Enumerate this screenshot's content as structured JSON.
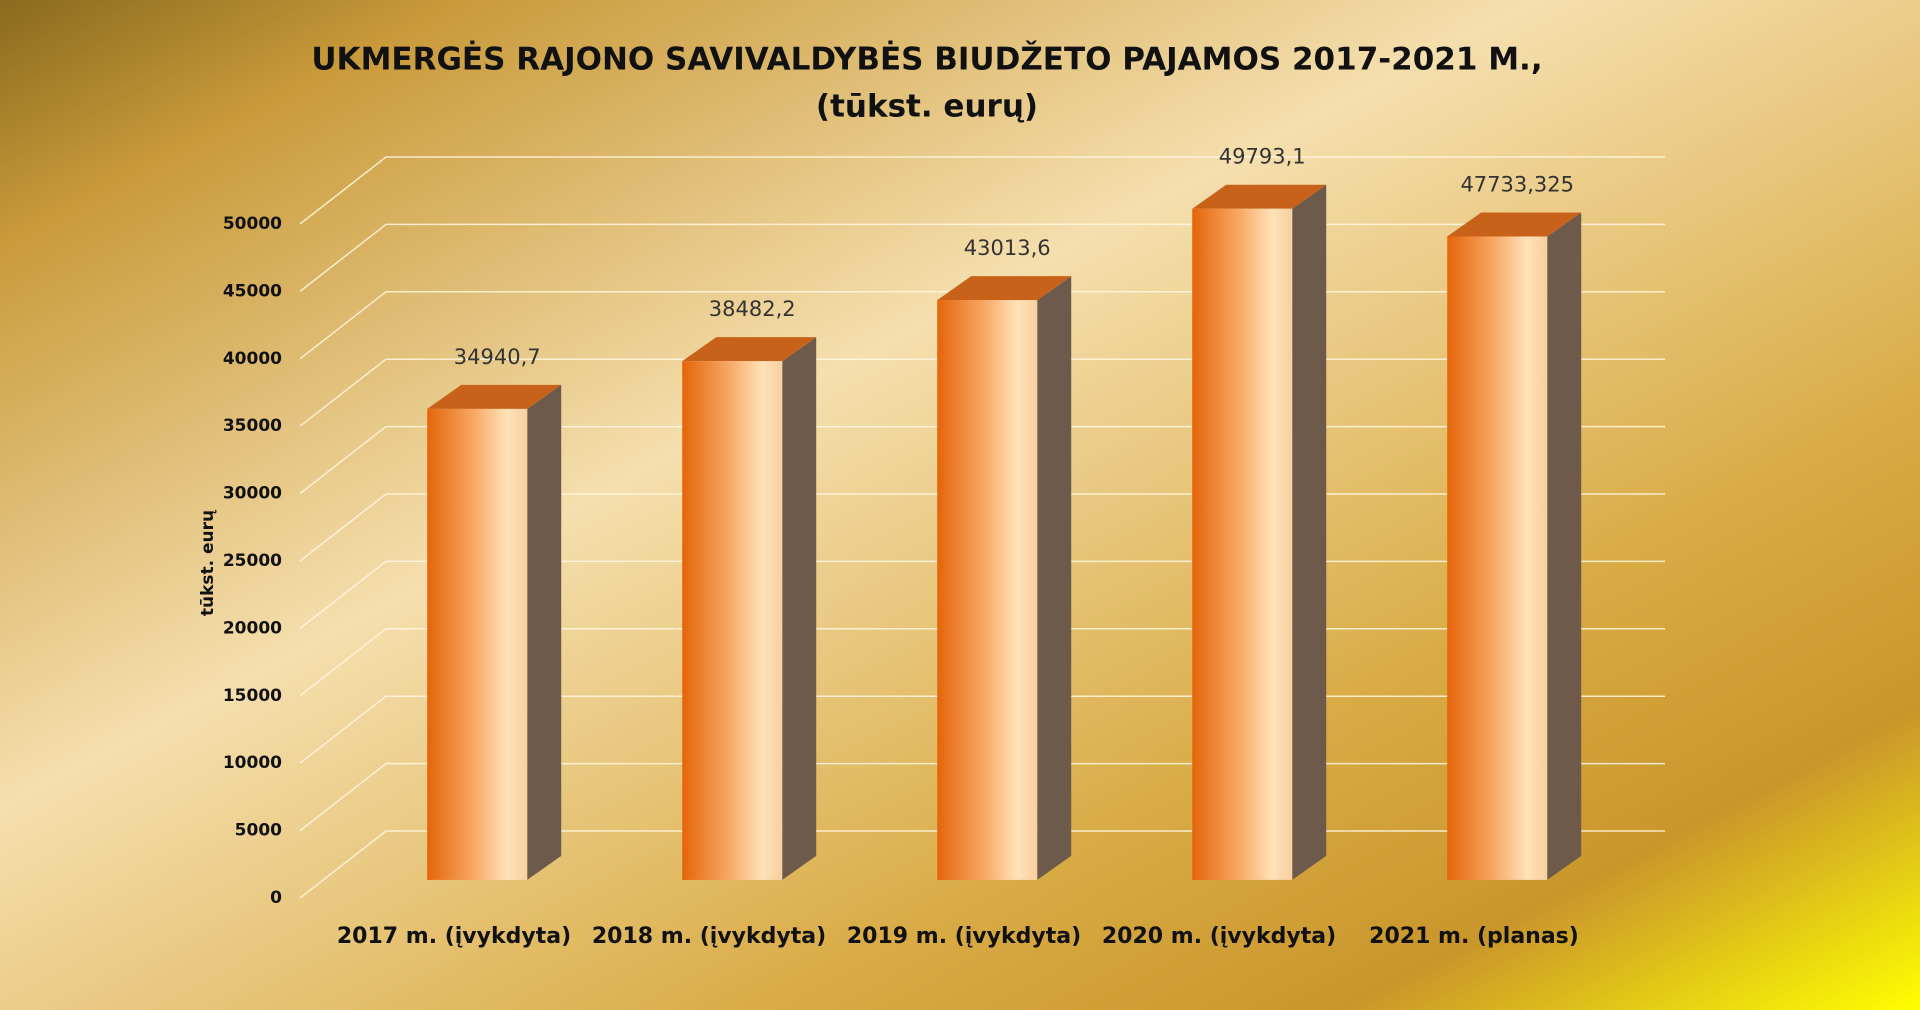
{
  "chart_data": {
    "type": "bar3d",
    "title": "UKMERGĖS RAJONO SAVIVALDYBĖS BIUDŽETO PAJAMOS 2017-2021 M.,",
    "subtitle": "(tūkst. eurų)",
    "y_axis_label": "tūkst. eurų",
    "categories": [
      "2017 m. (įvykdyta)",
      "2018 m. (įvykdyta)",
      "2019 m. (įvykdyta)",
      "2020 m. (įvykdyta)",
      "2021 m. (planas)"
    ],
    "values": [
      34940.7,
      38482.2,
      43013.6,
      49793.1,
      47733.325
    ],
    "value_labels": [
      "34940,7",
      "38482,2",
      "43013,6",
      "49793,1",
      "47733,325"
    ],
    "color": "#e8700f",
    "ylim": [
      0,
      50000
    ],
    "yticks": [
      0,
      5000,
      10000,
      15000,
      20000,
      25000,
      30000,
      35000,
      40000,
      45000,
      50000
    ],
    "grid": true
  }
}
